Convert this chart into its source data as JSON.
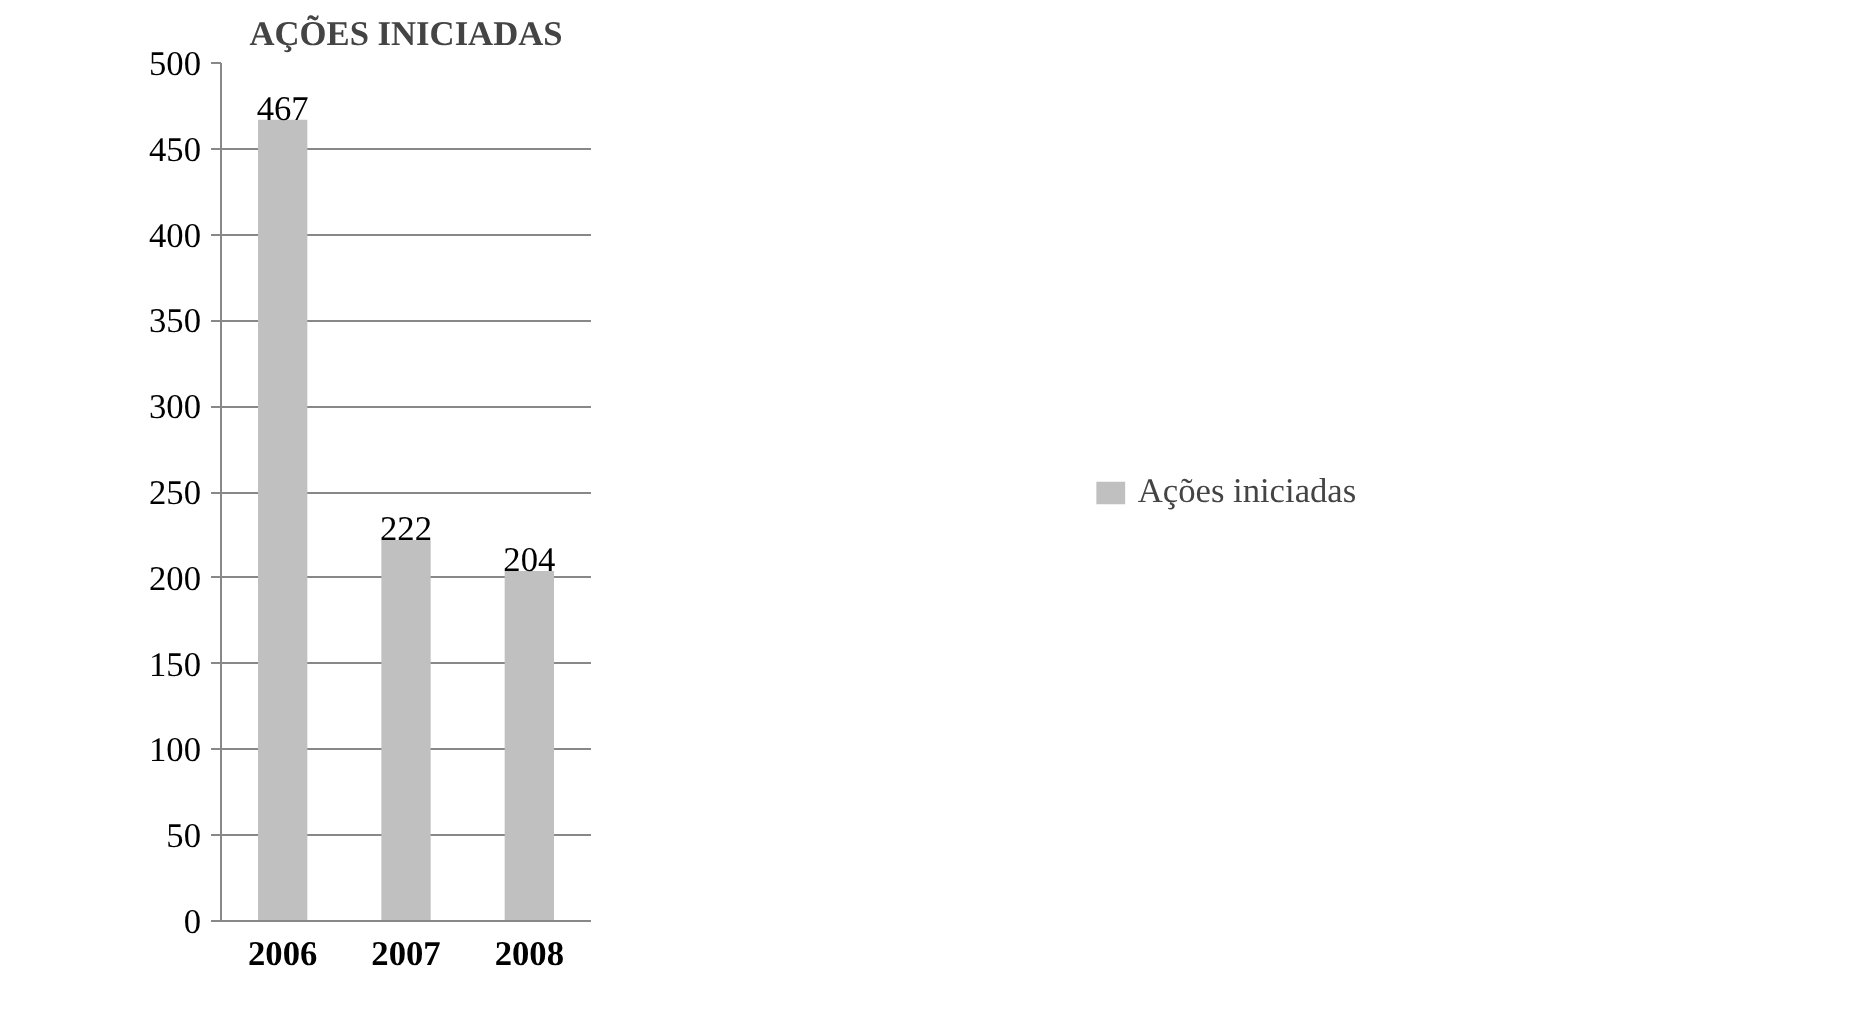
{
  "chart_data": {
    "type": "bar",
    "title": "AÇÕES INICIADAS",
    "categories": [
      "2006",
      "2007",
      "2008"
    ],
    "series": [
      {
        "name": "Ações iniciadas",
        "color": "#c0c0c0",
        "values": [
          467,
          222,
          204
        ]
      }
    ],
    "ylim": [
      0,
      500
    ],
    "yticks": [
      0,
      50,
      100,
      150,
      200,
      250,
      300,
      350,
      400,
      450,
      500
    ],
    "grid": "y",
    "legend": "right",
    "data_labels": true
  }
}
